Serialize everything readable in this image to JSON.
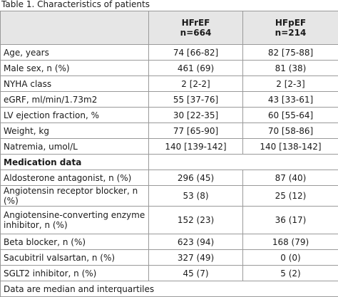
{
  "caption": "Table 1. Characteristics of patients",
  "table": {
    "columns": [
      {
        "name": "HFrEF",
        "n": "n=664"
      },
      {
        "name": "HFpEF",
        "n": "n=214"
      }
    ],
    "rows": [
      [
        "Age, years",
        "74 [66-82]",
        "82 [75-88]"
      ],
      [
        "Male sex, n (%)",
        "461 (69)",
        "81 (38)"
      ],
      [
        "NYHA class",
        "2 [2-2]",
        "2 [2-3]"
      ],
      [
        "eGRF, ml/min/1.73m2",
        "55 [37-76]",
        "43 [33-61]"
      ],
      [
        "LV ejection fraction, %",
        "30 [22-35]",
        "60 [55-64]"
      ],
      [
        "Weight, kg",
        "77 [65-90]",
        "70 [58-86]"
      ],
      [
        "Natremia, umol/L",
        "140 [139-142]",
        "140 [138-142]"
      ],
      {
        "section": "Medication data"
      },
      [
        "Aldosterone antagonist, n (%)",
        "296 (45)",
        "87 (40)"
      ],
      [
        "Angiotensin receptor blocker, n (%)",
        "53 (8)",
        "25 (12)"
      ],
      [
        "Angiotensine-converting enzyme inhibitor, n (%)",
        "152 (23)",
        "36 (17)"
      ],
      [
        "Beta blocker, n (%)",
        "623 (94)",
        "168 (79)"
      ],
      [
        "Sacubitril valsartan, n (%)",
        "327 (49)",
        "0 (0)"
      ],
      [
        "SGLT2 inhibitor, n (%)",
        "45 (7)",
        "5 (2)"
      ]
    ],
    "footnote": "Data are median and interquartiles"
  }
}
